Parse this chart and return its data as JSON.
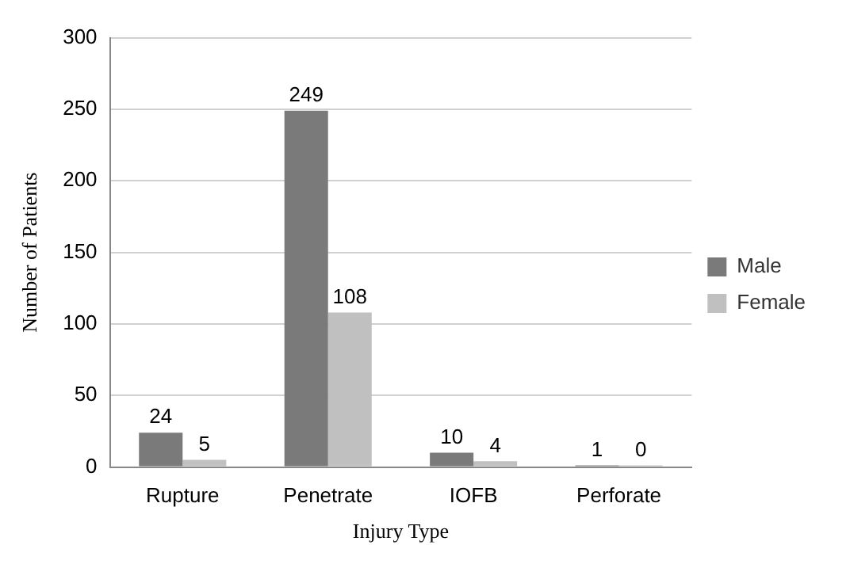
{
  "chart_data": {
    "type": "bar",
    "xlabel": "Injury Type",
    "ylabel": "Number of Patients",
    "categories": [
      "Rupture",
      "Penetrate",
      "IOFB",
      "Perforate"
    ],
    "series": [
      {
        "name": "Male",
        "color": "#7a7a7a",
        "values": [
          24,
          249,
          10,
          1
        ]
      },
      {
        "name": "Female",
        "color": "#c0c0c0",
        "values": [
          5,
          108,
          4,
          0
        ]
      }
    ],
    "ylim": [
      0,
      300
    ],
    "yticks": [
      0,
      50,
      100,
      150,
      200,
      250,
      300
    ],
    "grid": "y",
    "legend": "right",
    "data_labels": true
  }
}
